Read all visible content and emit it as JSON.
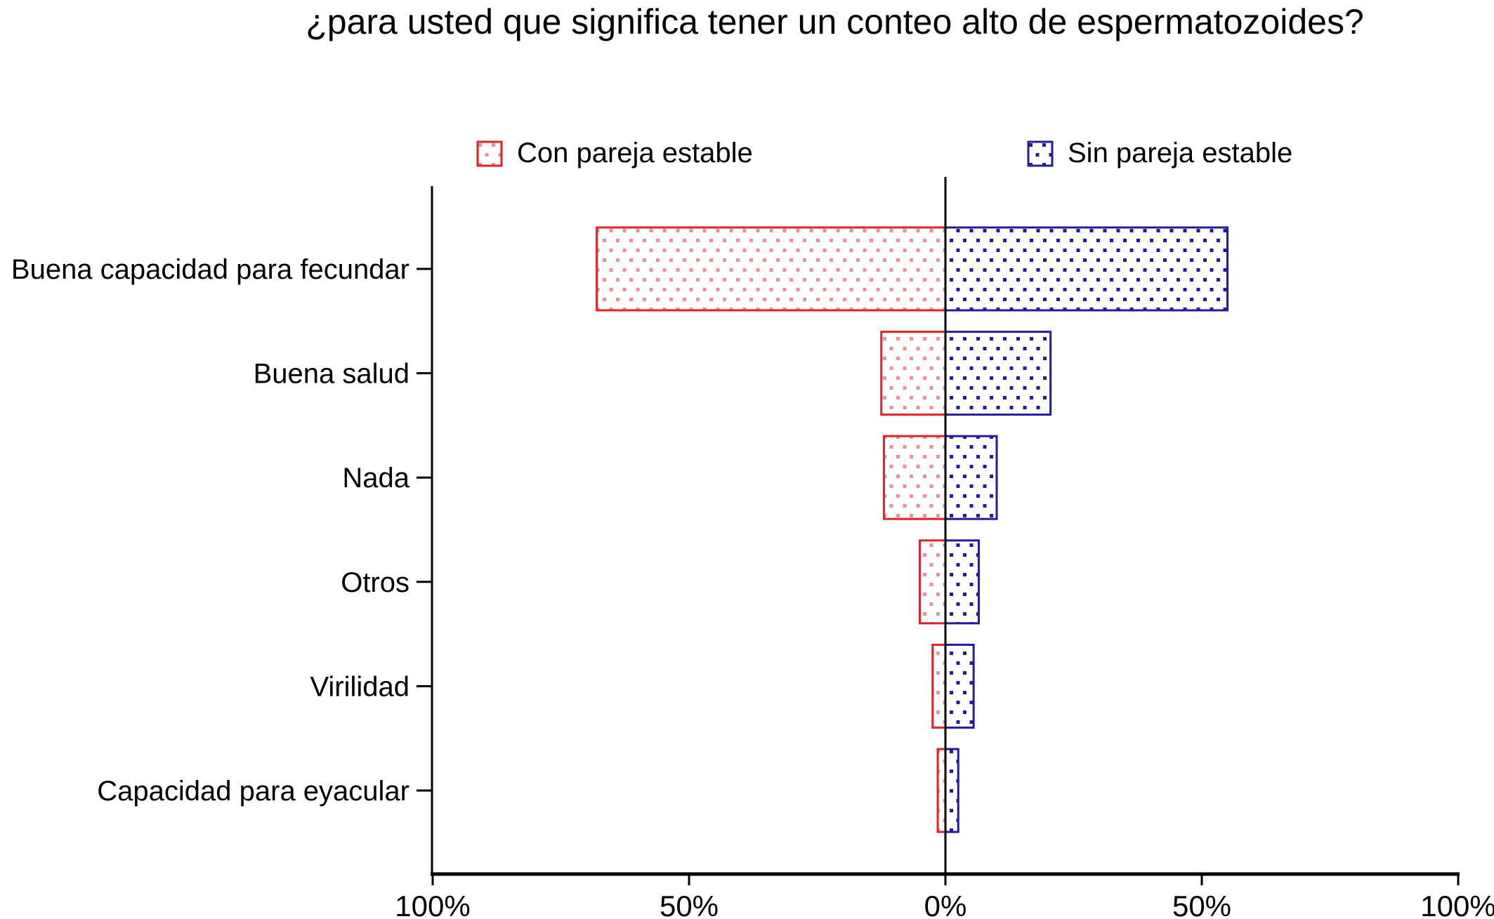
{
  "title": "¿para usted que significa tener un conteo alto de espermatozoides?",
  "chart_data": {
    "type": "bar",
    "orientation": "horizontal-diverging",
    "title": "¿para usted que significa tener un conteo alto de espermatozoides?",
    "categories": [
      "Buena capacidad para fecundar",
      "Buena salud",
      "Nada",
      "Otros",
      "Virilidad",
      "Capacidad para eyacular"
    ],
    "series": [
      {
        "name": "Con pareja estable",
        "side": "left",
        "color": "#e02128",
        "dot_color": "#ef9097",
        "values": [
          68,
          12.5,
          12,
          5,
          2.5,
          1.5
        ]
      },
      {
        "name": "Sin pareja estable",
        "side": "right",
        "color": "#211ca0",
        "dot_color": "#211ca0",
        "values": [
          55,
          20.5,
          10,
          6.5,
          5.5,
          2.5
        ]
      }
    ],
    "x_axis": {
      "tick_labels": [
        "100%",
        "50%",
        "0%",
        "50%",
        "100%"
      ],
      "tick_values": [
        -100,
        -50,
        0,
        50,
        100
      ],
      "xlim": [
        -100,
        100
      ],
      "unit": "%"
    },
    "ylabel": "",
    "xlabel": "",
    "grid": false,
    "legend_position": "top",
    "axis_color": "#000000",
    "background_color": "#ffffff"
  }
}
